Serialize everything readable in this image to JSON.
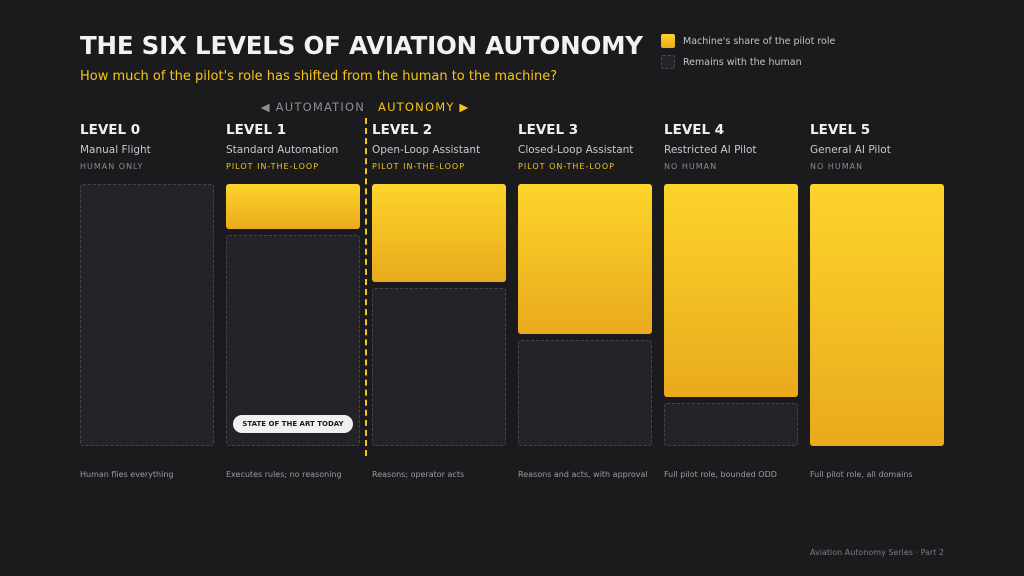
{
  "header": {
    "title": "THE SIX LEVELS OF AVIATION AUTONOMY",
    "subtitle": "How much of the pilot's role has shifted from the human to the machine?"
  },
  "legend": {
    "machine_label": "Machine's share of the pilot role",
    "human_label": "Remains with the human"
  },
  "axis": {
    "left_label": "◀ AUTOMATION",
    "right_label": "AUTONOMY ▶"
  },
  "colors": {
    "accent": "#f5c518",
    "background": "#1b1b1e",
    "machine_top": "#fdd42a",
    "machine_bottom": "#e9aa1d"
  },
  "chart_data": {
    "type": "bar",
    "stacked": true,
    "categories": [
      "LEVEL 0",
      "LEVEL 1",
      "LEVEL 2",
      "LEVEL 3",
      "LEVEL 4",
      "LEVEL 5"
    ],
    "series": [
      {
        "name": "Machine's share of the pilot role",
        "values": [
          0,
          0.18,
          0.38,
          0.58,
          0.82,
          1.0
        ]
      },
      {
        "name": "Remains with the human",
        "values": [
          1.0,
          0.82,
          0.62,
          0.42,
          0.18,
          0
        ]
      }
    ],
    "ylim": [
      0,
      1
    ]
  },
  "levels": [
    {
      "name": "LEVEL 0",
      "desc": "Manual Flight",
      "role": "HUMAN ONLY",
      "role_type": "human",
      "machine_share": 0,
      "caption": "Human flies everything"
    },
    {
      "name": "LEVEL 1",
      "desc": "Standard Automation",
      "role": "PILOT IN-THE-LOOP",
      "role_type": "loop",
      "machine_share": 0.18,
      "caption": "Executes rules; no reasoning"
    },
    {
      "name": "LEVEL 2",
      "desc": "Open-Loop Assistant",
      "role": "PILOT IN-THE-LOOP",
      "role_type": "loop",
      "machine_share": 0.38,
      "caption": "Reasons; operator acts"
    },
    {
      "name": "LEVEL 3",
      "desc": "Closed-Loop Assistant",
      "role": "PILOT ON-THE-LOOP",
      "role_type": "loop",
      "machine_share": 0.58,
      "caption": "Reasons and acts, with approval"
    },
    {
      "name": "LEVEL 4",
      "desc": "Restricted AI Pilot",
      "role": "NO HUMAN",
      "role_type": "human",
      "machine_share": 0.82,
      "caption": "Full pilot role, bounded ODD"
    },
    {
      "name": "LEVEL 5",
      "desc": "General AI Pilot",
      "role": "NO HUMAN",
      "role_type": "human",
      "machine_share": 1.0,
      "caption": "Full pilot role, all domains"
    }
  ],
  "badge": {
    "label": "STATE OF THE ART TODAY"
  },
  "footer": {
    "text": "Aviation Autonomy Series · Part 2"
  }
}
